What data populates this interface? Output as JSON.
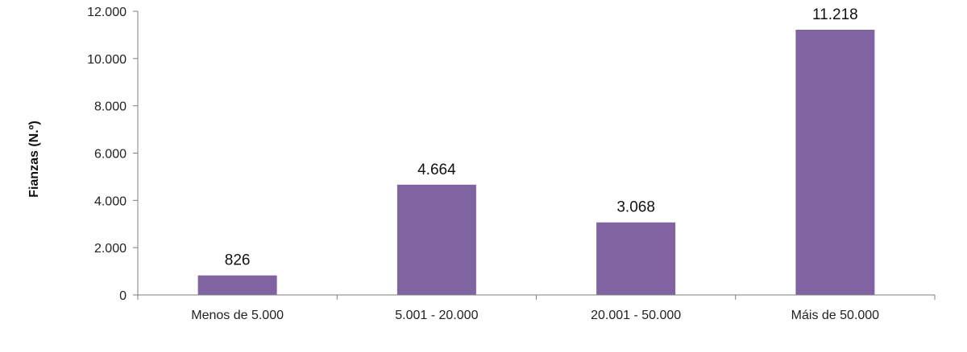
{
  "chart_data": {
    "type": "bar",
    "categories": [
      "Menos de 5.000",
      "5.001 - 20.000",
      "20.001 - 50.000",
      "Máis de 50.000"
    ],
    "values": [
      826,
      4664,
      3068,
      11218
    ],
    "data_labels": [
      "826",
      "4.664",
      "3.068",
      "11.218"
    ],
    "ylabel": "Fianzas (N.º)",
    "ylim": [
      0,
      12000
    ],
    "yticks": [
      0,
      2000,
      4000,
      6000,
      8000,
      10000,
      12000
    ],
    "ytick_labels": [
      "0",
      "2.000",
      "4.000",
      "6.000",
      "8.000",
      "10.000",
      "12.000"
    ],
    "grid": false,
    "legend": "none",
    "bar_color": "#8064a2"
  }
}
